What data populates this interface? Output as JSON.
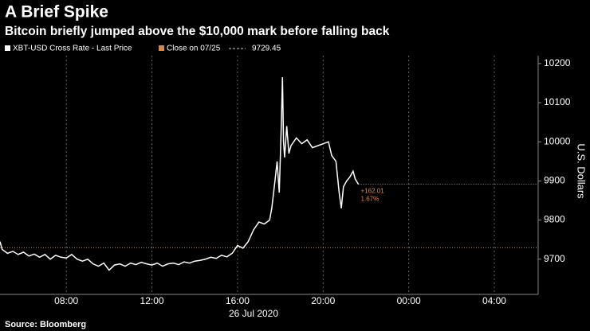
{
  "chart_data": {
    "type": "line",
    "title": "A Brief Spike",
    "subtitle": "Bitcoin briefly jumped above the $10,000 mark before falling back",
    "source": "Source: Bloomberg",
    "y_label": "U.S. Dollars",
    "x_date_label": "26 Jul 2020",
    "xlim": [
      4.9,
      30.05
    ],
    "xticks": [
      {
        "value": 8,
        "label": "08:00"
      },
      {
        "value": 12,
        "label": "12:00"
      },
      {
        "value": 16,
        "label": "16:00"
      },
      {
        "value": 20,
        "label": "20:00"
      },
      {
        "value": 24,
        "label": "00:00"
      },
      {
        "value": 28,
        "label": "04:00"
      }
    ],
    "ylim": [
      9610,
      10220
    ],
    "yticks": [
      9700,
      9800,
      9900,
      10000,
      10100,
      10200
    ],
    "series": [
      {
        "name": "XBT-USD Cross Rate - Last Price",
        "color": "#ffffff",
        "x": [
          4.9,
          5.0,
          5.25,
          5.5,
          5.75,
          6.0,
          6.25,
          6.5,
          6.75,
          7.0,
          7.25,
          7.5,
          7.75,
          8.0,
          8.25,
          8.5,
          8.75,
          9.0,
          9.25,
          9.5,
          9.75,
          10.0,
          10.25,
          10.5,
          10.75,
          11.0,
          11.25,
          11.5,
          11.75,
          12.0,
          12.25,
          12.5,
          12.75,
          13.0,
          13.25,
          13.5,
          13.75,
          14.0,
          14.25,
          14.5,
          14.75,
          15.0,
          15.25,
          15.5,
          15.75,
          16.0,
          16.25,
          16.5,
          16.75,
          17.0,
          17.25,
          17.5,
          17.6,
          17.75,
          17.85,
          17.95,
          18.05,
          18.1,
          18.15,
          18.2,
          18.3,
          18.4,
          18.5,
          18.75,
          19.0,
          19.25,
          19.5,
          19.75,
          20.0,
          20.25,
          20.4,
          20.6,
          20.75,
          20.85,
          20.95,
          21.1,
          21.25,
          21.4,
          21.5,
          21.65
        ],
        "values": [
          9745,
          9725,
          9715,
          9720,
          9712,
          9718,
          9708,
          9713,
          9705,
          9712,
          9700,
          9710,
          9705,
          9703,
          9712,
          9700,
          9695,
          9700,
          9688,
          9682,
          9690,
          9672,
          9685,
          9688,
          9682,
          9690,
          9686,
          9692,
          9688,
          9685,
          9690,
          9682,
          9688,
          9690,
          9686,
          9693,
          9690,
          9695,
          9697,
          9700,
          9705,
          9702,
          9710,
          9706,
          9715,
          9735,
          9728,
          9745,
          9775,
          9795,
          9790,
          9800,
          9830,
          9900,
          9950,
          9870,
          10050,
          10165,
          10000,
          9960,
          10040,
          9970,
          9990,
          10010,
          9995,
          10005,
          9985,
          9990,
          9995,
          10000,
          9965,
          9950,
          9870,
          9830,
          9885,
          9900,
          9910,
          9925,
          9905,
          9891.46
        ]
      }
    ],
    "reference_line": {
      "name": "Close on 07/25",
      "value": 9729.45,
      "color": "#e8833a"
    },
    "change": {
      "value": 162.01,
      "label": "+162.01",
      "percent": 1.67,
      "percent_label": "1.67%",
      "color": "#e8833a"
    }
  }
}
